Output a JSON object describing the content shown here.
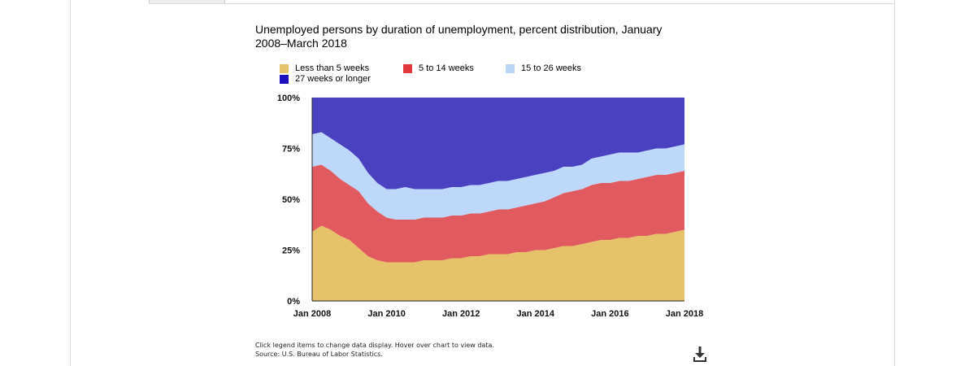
{
  "chart_data": {
    "type": "area",
    "stacked": true,
    "percent": true,
    "title": "Unemployed persons by duration of unemployment, percent distribution, January 2008–March 2018",
    "x_ticks": [
      "Jan 2008",
      "Jan 2010",
      "Jan 2012",
      "Jan 2014",
      "Jan 2016",
      "Jan 2018"
    ],
    "y_ticks": [
      "0%",
      "25%",
      "50%",
      "75%",
      "100%"
    ],
    "ylim": [
      0,
      100
    ],
    "x": [
      "2008-01",
      "2008-04",
      "2008-07",
      "2008-10",
      "2009-01",
      "2009-04",
      "2009-07",
      "2009-10",
      "2010-01",
      "2010-04",
      "2010-07",
      "2010-10",
      "2011-01",
      "2011-04",
      "2011-07",
      "2011-10",
      "2012-01",
      "2012-04",
      "2012-07",
      "2012-10",
      "2013-01",
      "2013-04",
      "2013-07",
      "2013-10",
      "2014-01",
      "2014-04",
      "2014-07",
      "2014-10",
      "2015-01",
      "2015-04",
      "2015-07",
      "2015-10",
      "2016-01",
      "2016-04",
      "2016-07",
      "2016-10",
      "2017-01",
      "2017-04",
      "2017-07",
      "2017-10",
      "2018-01",
      "2018-03"
    ],
    "legend_position": "top-left",
    "grid": true,
    "series": [
      {
        "name": "Less than 5 weeks",
        "color": "#e6c36a",
        "values": [
          34,
          37,
          35,
          32,
          30,
          26,
          22,
          20,
          19,
          19,
          19,
          19,
          20,
          20,
          20,
          21,
          21,
          22,
          22,
          23,
          23,
          23,
          24,
          24,
          25,
          25,
          26,
          27,
          27,
          28,
          29,
          30,
          30,
          31,
          31,
          32,
          32,
          33,
          33,
          34,
          35,
          38
        ]
      },
      {
        "name": "5 to 14 weeks",
        "color": "#e15a5f",
        "values": [
          32,
          30,
          29,
          28,
          27,
          28,
          26,
          24,
          22,
          21,
          21,
          21,
          21,
          21,
          21,
          21,
          21,
          21,
          21,
          21,
          22,
          22,
          22,
          23,
          23,
          24,
          25,
          26,
          27,
          27,
          28,
          28,
          28,
          28,
          28,
          28,
          29,
          29,
          29,
          29,
          29,
          28
        ]
      },
      {
        "name": "15 to 26 weeks",
        "color": "#bdd8f8",
        "values": [
          16,
          16,
          16,
          17,
          17,
          16,
          15,
          14,
          14,
          15,
          16,
          15,
          14,
          14,
          14,
          14,
          14,
          14,
          14,
          14,
          14,
          14,
          14,
          14,
          14,
          14,
          13,
          13,
          12,
          12,
          13,
          13,
          14,
          14,
          14,
          13,
          13,
          13,
          13,
          13,
          13,
          14
        ]
      },
      {
        "name": "27 weeks or longer",
        "color": "#4a41c1",
        "values": [
          18,
          17,
          20,
          23,
          26,
          30,
          37,
          42,
          45,
          45,
          44,
          45,
          45,
          45,
          45,
          44,
          44,
          43,
          43,
          42,
          41,
          41,
          40,
          39,
          38,
          37,
          36,
          34,
          34,
          33,
          30,
          29,
          28,
          27,
          27,
          27,
          26,
          25,
          25,
          24,
          23,
          20
        ]
      }
    ]
  },
  "legend": {
    "items": [
      {
        "label": "Less than 5 weeks",
        "color": "#e6c36a"
      },
      {
        "label": "5 to 14 weeks",
        "color": "#e0383b"
      },
      {
        "label": "15 to 26 weeks",
        "color": "#b9d6f7"
      },
      {
        "label": "27 weeks or longer",
        "color": "#1c0fbf"
      }
    ]
  },
  "footnote": {
    "line1": "Click legend items to change data display. Hover over chart to view data.",
    "line2": "Source: U.S. Bureau of Labor Statistics."
  },
  "icons": {
    "download": "download-icon"
  }
}
